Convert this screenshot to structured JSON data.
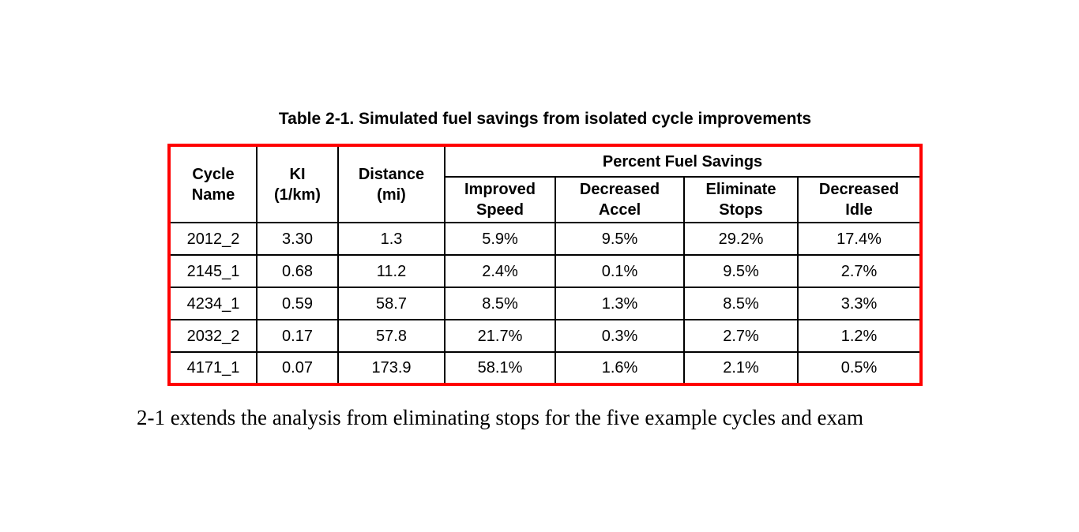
{
  "caption": "Table 2-1. Simulated fuel savings from isolated cycle improvements",
  "table": {
    "headers": {
      "cycle_name": "Cycle\nName",
      "ki": "KI\n(1/km)",
      "distance": "Distance\n(mi)",
      "percent_group": "Percent Fuel Savings",
      "improved_speed": "Improved\nSpeed",
      "decreased_accel": "Decreased\nAccel",
      "eliminate_stops": "Eliminate\nStops",
      "decreased_idle": "Decreased\nIdle"
    },
    "rows": [
      [
        "2012_2",
        "3.30",
        "1.3",
        "5.9%",
        "9.5%",
        "29.2%",
        "17.4%"
      ],
      [
        "2145_1",
        "0.68",
        "11.2",
        "2.4%",
        "0.1%",
        "9.5%",
        "2.7%"
      ],
      [
        "4234_1",
        "0.59",
        "58.7",
        "8.5%",
        "1.3%",
        "8.5%",
        "3.3%"
      ],
      [
        "2032_2",
        "0.17",
        "57.8",
        "21.7%",
        "0.3%",
        "2.7%",
        "1.2%"
      ],
      [
        "4171_1",
        "0.07",
        "173.9",
        "58.1%",
        "1.6%",
        "2.1%",
        "0.5%"
      ]
    ],
    "outer_border_color": "#ff0000",
    "grid_color": "#000000"
  },
  "paragraph": "2-1 extends the analysis from eliminating stops for the five example cycles and exam"
}
